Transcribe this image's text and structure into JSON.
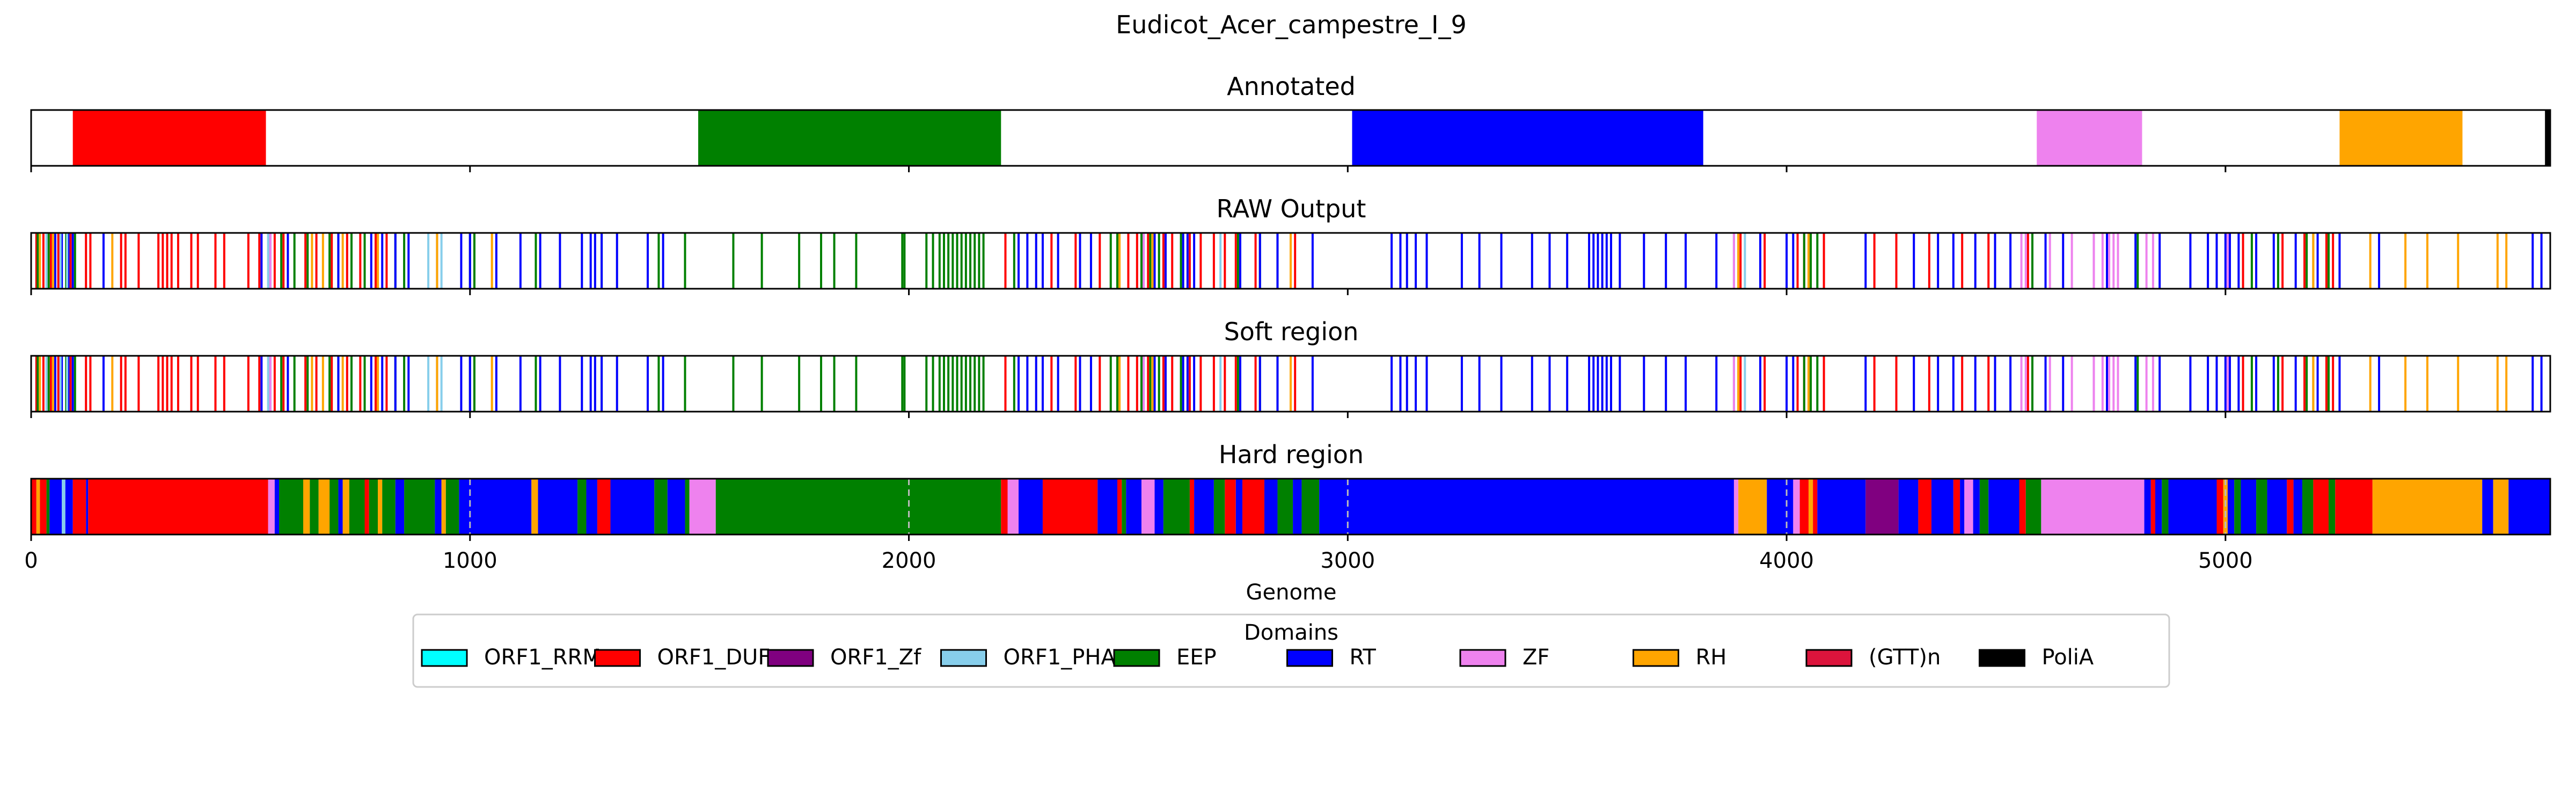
{
  "chart_data": {
    "type": "genome-track",
    "title": "Eudicot_Acer_campestre_I_9",
    "xlabel": "Genome",
    "xlim": [
      0,
      5740
    ],
    "xticks": [
      0,
      1000,
      2000,
      3000,
      4000,
      5000
    ],
    "colors": {
      "ORF1_RRM": "#00ffff",
      "ORF1_DUF": "#ff0000",
      "ORF1_Zf": "#800080",
      "ORF1_PHA": "#87ceeb",
      "EEP": "#008000",
      "RT": "#0000ff",
      "ZF": "#ee82ee",
      "RH": "#ffa500",
      "(GTT)n": "#dc143c",
      "PoliA": "#000000"
    },
    "legend": {
      "title": "Domains",
      "placement": "bottom-center",
      "entries": [
        "ORF1_RRM",
        "ORF1_DUF",
        "ORF1_Zf",
        "ORF1_PHA",
        "EEP",
        "RT",
        "ZF",
        "RH",
        "(GTT)n",
        "PoliA"
      ]
    },
    "panels": [
      {
        "title": "Annotated",
        "kind": "segments",
        "segments": [
          {
            "domain": "ORF1_DUF",
            "start": 95,
            "end": 535
          },
          {
            "domain": "EEP",
            "start": 1520,
            "end": 2210
          },
          {
            "domain": "RT",
            "start": 3010,
            "end": 3810
          },
          {
            "domain": "ZF",
            "start": 4570,
            "end": 4810
          },
          {
            "domain": "RH",
            "start": 5260,
            "end": 5540
          },
          {
            "domain": "PoliA",
            "start": 5728,
            "end": 5740
          }
        ]
      },
      {
        "title": "RAW Output",
        "kind": "lines",
        "lines": {
          "ORF1_DUF": [
            12,
            28,
            45,
            62,
            90,
            125,
            135,
            205,
            215,
            245,
            290,
            300,
            310,
            320,
            335,
            365,
            380,
            420,
            440,
            495,
            520,
            555,
            575,
            625,
            650,
            685,
            720,
            750,
            785,
            810,
            2220,
            2325,
            2380,
            2435,
            2475,
            2500,
            2520,
            2545,
            2580,
            2600,
            2640,
            2665,
            2695,
            2720,
            2745,
            2790,
            2880,
            3895,
            3950,
            4025,
            4040,
            4085,
            4200,
            4250,
            4325,
            4400,
            4460,
            4550,
            5040,
            5130,
            5180,
            5230,
            5245
          ],
          "EEP": [
            15,
            40,
            80,
            100,
            570,
            600,
            630,
            680,
            700,
            730,
            760,
            790,
            830,
            850,
            1000,
            1010,
            1150,
            1300,
            1430,
            1490,
            1600,
            1665,
            1750,
            1800,
            1830,
            1880,
            1985,
            1990,
            2040,
            2055,
            2070,
            2080,
            2090,
            2100,
            2110,
            2120,
            2130,
            2140,
            2150,
            2160,
            2170,
            2240,
            2460,
            2475,
            2530,
            2550,
            2570,
            2620,
            2750,
            2800,
            2840,
            3880,
            4040,
            4055,
            4070,
            4560,
            4800,
            5060,
            5120,
            5185,
            5200,
            5235
          ],
          "RT": [
            55,
            70,
            85,
            95,
            165,
            525,
            545,
            585,
            700,
            775,
            800,
            830,
            860,
            925,
            980,
            1000,
            1060,
            1115,
            1160,
            1205,
            1255,
            1275,
            1285,
            1300,
            1335,
            1405,
            1440,
            2250,
            2270,
            2290,
            2305,
            2340,
            2390,
            2415,
            2535,
            2560,
            2585,
            2625,
            2635,
            2650,
            2755,
            2800,
            2840,
            2870,
            2920,
            3100,
            3120,
            3135,
            3155,
            3180,
            3260,
            3300,
            3350,
            3420,
            3460,
            3500,
            3550,
            3560,
            3570,
            3580,
            3590,
            3600,
            3620,
            3675,
            3725,
            3770,
            3840,
            3940,
            4000,
            4015,
            4180,
            4290,
            4345,
            4380,
            4430,
            4475,
            4510,
            4590,
            4630,
            4700,
            4730,
            4795,
            4850,
            4920,
            4960,
            4980,
            5000,
            5010,
            5030,
            5070,
            5110,
            5160,
            5210,
            5260,
            5350,
            5700,
            5720
          ],
          "ZF": [
            545,
            2535,
            3880,
            3890,
            4535,
            4545,
            4600,
            4650,
            4700,
            4720,
            4735,
            4745,
            4755,
            4820,
            4835,
            5005
          ],
          "RH": [
            20,
            50,
            185,
            640,
            665,
            710,
            790,
            925,
            1050,
            2480,
            2555,
            2870,
            3890,
            4050,
            5200,
            5330,
            5410,
            5460,
            5530,
            5620,
            5640
          ],
          "ORF1_PHA": [
            35,
            67,
            82,
            540,
            905,
            935,
            2710,
            3905
          ]
        }
      },
      {
        "title": "Soft region",
        "kind": "lines",
        "same_as": "RAW Output"
      },
      {
        "title": "Hard region",
        "kind": "segments",
        "segments": [
          {
            "domain": "ORF1_DUF",
            "start": 0,
            "end": 12
          },
          {
            "domain": "RH",
            "start": 12,
            "end": 20
          },
          {
            "domain": "ORF1_DUF",
            "start": 20,
            "end": 35
          },
          {
            "domain": "EEP",
            "start": 35,
            "end": 42
          },
          {
            "domain": "RT",
            "start": 42,
            "end": 70
          },
          {
            "domain": "ORF1_PHA",
            "start": 70,
            "end": 78
          },
          {
            "domain": "RT",
            "start": 78,
            "end": 95
          },
          {
            "domain": "ORF1_DUF",
            "start": 95,
            "end": 125
          },
          {
            "domain": "RT",
            "start": 125,
            "end": 130
          },
          {
            "domain": "ORF1_DUF",
            "start": 130,
            "end": 540
          },
          {
            "domain": "ZF",
            "start": 540,
            "end": 555
          },
          {
            "domain": "RT",
            "start": 555,
            "end": 565
          },
          {
            "domain": "EEP",
            "start": 565,
            "end": 620
          },
          {
            "domain": "RH",
            "start": 620,
            "end": 635
          },
          {
            "domain": "EEP",
            "start": 635,
            "end": 655
          },
          {
            "domain": "RH",
            "start": 655,
            "end": 680
          },
          {
            "domain": "EEP",
            "start": 680,
            "end": 700
          },
          {
            "domain": "RT",
            "start": 700,
            "end": 710
          },
          {
            "domain": "RH",
            "start": 710,
            "end": 725
          },
          {
            "domain": "EEP",
            "start": 725,
            "end": 760
          },
          {
            "domain": "ORF1_DUF",
            "start": 760,
            "end": 770
          },
          {
            "domain": "EEP",
            "start": 770,
            "end": 790
          },
          {
            "domain": "RH",
            "start": 790,
            "end": 800
          },
          {
            "domain": "EEP",
            "start": 800,
            "end": 830
          },
          {
            "domain": "RT",
            "start": 830,
            "end": 850
          },
          {
            "domain": "EEP",
            "start": 850,
            "end": 920
          },
          {
            "domain": "RT",
            "start": 920,
            "end": 935
          },
          {
            "domain": "RH",
            "start": 935,
            "end": 945
          },
          {
            "domain": "EEP",
            "start": 945,
            "end": 975
          },
          {
            "domain": "RT",
            "start": 975,
            "end": 1140
          },
          {
            "domain": "RH",
            "start": 1140,
            "end": 1155
          },
          {
            "domain": "RT",
            "start": 1155,
            "end": 1245
          },
          {
            "domain": "EEP",
            "start": 1245,
            "end": 1265
          },
          {
            "domain": "RT",
            "start": 1265,
            "end": 1290
          },
          {
            "domain": "ORF1_DUF",
            "start": 1290,
            "end": 1320
          },
          {
            "domain": "RT",
            "start": 1320,
            "end": 1420
          },
          {
            "domain": "EEP",
            "start": 1420,
            "end": 1450
          },
          {
            "domain": "RT",
            "start": 1450,
            "end": 1490
          },
          {
            "domain": "EEP",
            "start": 1490,
            "end": 1500
          },
          {
            "domain": "ZF",
            "start": 1500,
            "end": 1560
          },
          {
            "domain": "EEP",
            "start": 1560,
            "end": 2210
          },
          {
            "domain": "ORF1_DUF",
            "start": 2210,
            "end": 2225
          },
          {
            "domain": "ZF",
            "start": 2225,
            "end": 2250
          },
          {
            "domain": "RT",
            "start": 2250,
            "end": 2305
          },
          {
            "domain": "ORF1_DUF",
            "start": 2305,
            "end": 2430
          },
          {
            "domain": "RT",
            "start": 2430,
            "end": 2475
          },
          {
            "domain": "ORF1_DUF",
            "start": 2475,
            "end": 2485
          },
          {
            "domain": "EEP",
            "start": 2485,
            "end": 2495
          },
          {
            "domain": "RT",
            "start": 2495,
            "end": 2530
          },
          {
            "domain": "ZF",
            "start": 2530,
            "end": 2560
          },
          {
            "domain": "RT",
            "start": 2560,
            "end": 2580
          },
          {
            "domain": "EEP",
            "start": 2580,
            "end": 2640
          },
          {
            "domain": "ORF1_DUF",
            "start": 2640,
            "end": 2650
          },
          {
            "domain": "RT",
            "start": 2650,
            "end": 2695
          },
          {
            "domain": "EEP",
            "start": 2695,
            "end": 2720
          },
          {
            "domain": "ORF1_DUF",
            "start": 2720,
            "end": 2745
          },
          {
            "domain": "RT",
            "start": 2745,
            "end": 2760
          },
          {
            "domain": "ORF1_DUF",
            "start": 2760,
            "end": 2810
          },
          {
            "domain": "RT",
            "start": 2810,
            "end": 2840
          },
          {
            "domain": "EEP",
            "start": 2840,
            "end": 2875
          },
          {
            "domain": "RT",
            "start": 2875,
            "end": 2895
          },
          {
            "domain": "EEP",
            "start": 2895,
            "end": 2935
          },
          {
            "domain": "RT",
            "start": 2935,
            "end": 3880
          },
          {
            "domain": "ZF",
            "start": 3880,
            "end": 3890
          },
          {
            "domain": "RH",
            "start": 3890,
            "end": 3955
          },
          {
            "domain": "RT",
            "start": 3955,
            "end": 4015
          },
          {
            "domain": "ZF",
            "start": 4015,
            "end": 4030
          },
          {
            "domain": "ORF1_DUF",
            "start": 4030,
            "end": 4050
          },
          {
            "domain": "RH",
            "start": 4050,
            "end": 4060
          },
          {
            "domain": "ORF1_DUF",
            "start": 4060,
            "end": 4070
          },
          {
            "domain": "RT",
            "start": 4070,
            "end": 4180
          },
          {
            "domain": "ORF1_Zf",
            "start": 4180,
            "end": 4255
          },
          {
            "domain": "RT",
            "start": 4255,
            "end": 4300
          },
          {
            "domain": "ORF1_DUF",
            "start": 4300,
            "end": 4330
          },
          {
            "domain": "RT",
            "start": 4330,
            "end": 4380
          },
          {
            "domain": "ORF1_DUF",
            "start": 4380,
            "end": 4395
          },
          {
            "domain": "RT",
            "start": 4395,
            "end": 4405
          },
          {
            "domain": "ZF",
            "start": 4405,
            "end": 4425
          },
          {
            "domain": "RT",
            "start": 4425,
            "end": 4440
          },
          {
            "domain": "EEP",
            "start": 4440,
            "end": 4460
          },
          {
            "domain": "RT",
            "start": 4460,
            "end": 4530
          },
          {
            "domain": "ORF1_DUF",
            "start": 4530,
            "end": 4545
          },
          {
            "domain": "EEP",
            "start": 4545,
            "end": 4580
          },
          {
            "domain": "ZF",
            "start": 4580,
            "end": 4815
          },
          {
            "domain": "RT",
            "start": 4815,
            "end": 4830
          },
          {
            "domain": "ORF1_DUF",
            "start": 4830,
            "end": 4840
          },
          {
            "domain": "RT",
            "start": 4840,
            "end": 4855
          },
          {
            "domain": "EEP",
            "start": 4855,
            "end": 4870
          },
          {
            "domain": "RT",
            "start": 4870,
            "end": 4980
          },
          {
            "domain": "ORF1_DUF",
            "start": 4980,
            "end": 4995
          },
          {
            "domain": "RH",
            "start": 4995,
            "end": 5005
          },
          {
            "domain": "RT",
            "start": 5005,
            "end": 5020
          },
          {
            "domain": "EEP",
            "start": 5020,
            "end": 5035
          },
          {
            "domain": "RT",
            "start": 5035,
            "end": 5070
          },
          {
            "domain": "EEP",
            "start": 5070,
            "end": 5095
          },
          {
            "domain": "RT",
            "start": 5095,
            "end": 5140
          },
          {
            "domain": "ORF1_DUF",
            "start": 5140,
            "end": 5155
          },
          {
            "domain": "RT",
            "start": 5155,
            "end": 5175
          },
          {
            "domain": "EEP",
            "start": 5175,
            "end": 5200
          },
          {
            "domain": "ORF1_DUF",
            "start": 5200,
            "end": 5235
          },
          {
            "domain": "EEP",
            "start": 5235,
            "end": 5250
          },
          {
            "domain": "ORF1_DUF",
            "start": 5250,
            "end": 5335
          },
          {
            "domain": "RH",
            "start": 5335,
            "end": 5585
          },
          {
            "domain": "RT",
            "start": 5585,
            "end": 5610
          },
          {
            "domain": "RH",
            "start": 5610,
            "end": 5645
          },
          {
            "domain": "RT",
            "start": 5645,
            "end": 5740
          }
        ],
        "dashed_gridlines_at": [
          1000,
          2000,
          3000,
          4000,
          5000
        ]
      }
    ]
  }
}
